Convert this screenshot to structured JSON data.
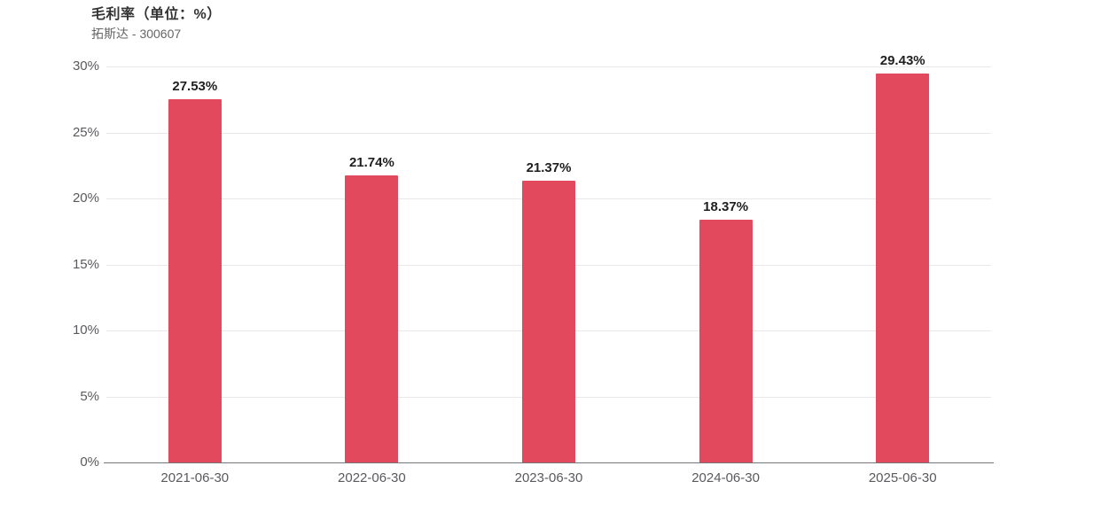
{
  "header": {
    "title": "毛利率（单位：%）",
    "subtitle": "拓斯达 - 300607"
  },
  "chart_data": {
    "type": "bar",
    "title": "毛利率（单位：%）",
    "subtitle": "拓斯达 - 300607",
    "categories": [
      "2021-06-30",
      "2022-06-30",
      "2023-06-30",
      "2024-06-30",
      "2025-06-30"
    ],
    "values": [
      27.53,
      21.74,
      21.37,
      18.37,
      29.43
    ],
    "value_labels": [
      "27.53%",
      "21.74%",
      "21.37%",
      "18.37%",
      "29.43%"
    ],
    "ylabel": "",
    "xlabel": "",
    "ylim": [
      0,
      30
    ],
    "yticks": [
      0,
      5,
      10,
      15,
      20,
      25,
      30
    ],
    "ytick_labels": [
      "0%",
      "5%",
      "10%",
      "15%",
      "20%",
      "25%",
      "30%"
    ],
    "bar_color": "#e2495c",
    "grid": true,
    "legend_position": "none",
    "background_color": "#ffffff"
  }
}
